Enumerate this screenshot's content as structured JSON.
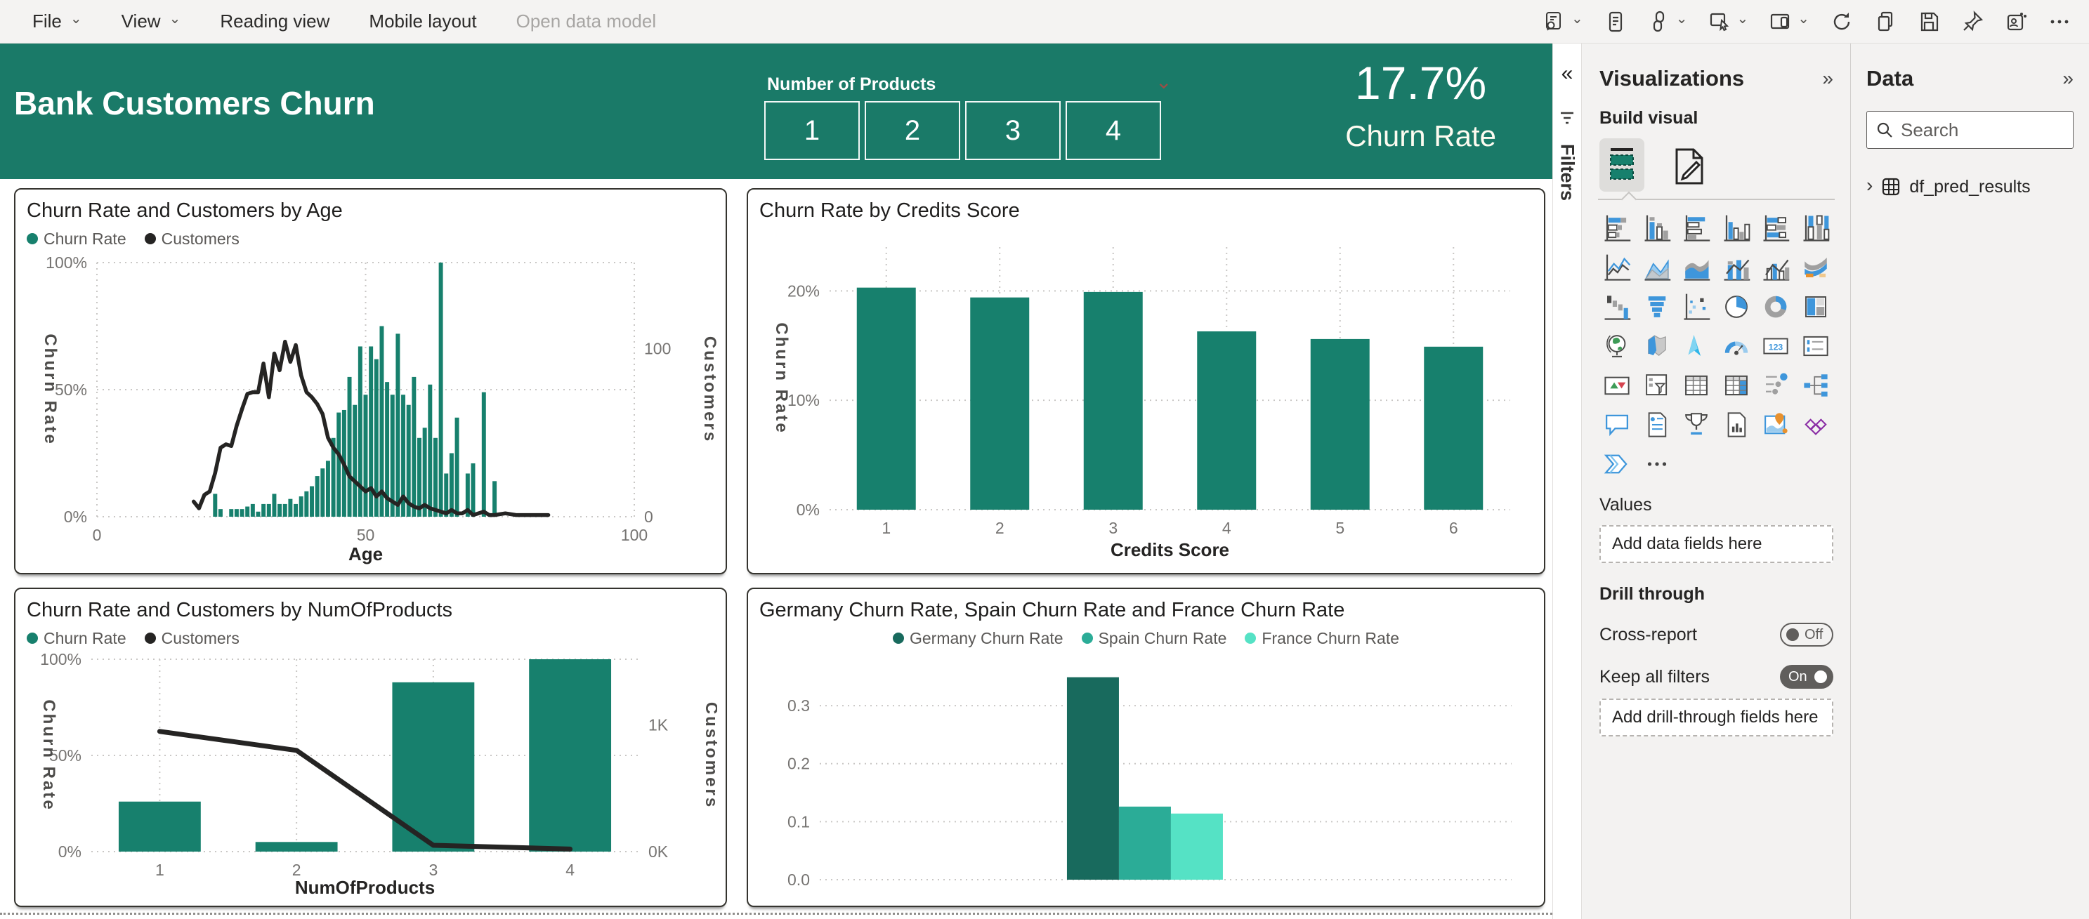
{
  "toolbar": {
    "menu": [
      {
        "label": "File",
        "chevron": true
      },
      {
        "label": "View",
        "chevron": true
      },
      {
        "label": "Reading view"
      },
      {
        "label": "Mobile layout"
      },
      {
        "label": "Open data model",
        "disabled": true
      }
    ],
    "icons": [
      {
        "name": "report-comments-icon",
        "chevron": true
      },
      {
        "name": "notes-icon"
      },
      {
        "name": "link-icon",
        "chevron": true
      },
      {
        "name": "multi-select-icon",
        "chevron": true
      },
      {
        "name": "mobile-preview-icon",
        "chevron": true
      },
      {
        "name": "refresh-icon"
      },
      {
        "name": "duplicate-icon"
      },
      {
        "name": "save-icon"
      },
      {
        "name": "pin-icon"
      },
      {
        "name": "teams-share-icon"
      },
      {
        "name": "more-options-icon"
      }
    ]
  },
  "banner": {
    "title": "Bank Customers Churn",
    "slicer_label": "Number of Products",
    "slicer_options": [
      "1",
      "2",
      "3",
      "4"
    ],
    "kpi_value": "17.7%",
    "kpi_label": "Churn Rate"
  },
  "filters_rail": {
    "label": "Filters",
    "collapse_icon": "«"
  },
  "viz_panel": {
    "title": "Visualizations",
    "collapse_icon": "»",
    "build_visual_label": "Build visual",
    "gallery": [
      "stacked-bar-chart",
      "stacked-column-chart",
      "clustered-bar-chart",
      "clustered-column-chart",
      "100-stacked-bar-chart",
      "100-stacked-column-chart",
      "line-chart",
      "area-chart",
      "stacked-area-chart",
      "line-and-stacked-column-chart",
      "line-and-clustered-column-chart",
      "ribbon-chart",
      "waterfall-chart",
      "funnel-chart",
      "scatter-chart",
      "pie-chart",
      "donut-chart",
      "treemap",
      "map",
      "filled-map",
      "azure-map",
      "gauge",
      "card",
      "multi-row-card",
      "kpi",
      "slicer",
      "table",
      "matrix",
      "key-influencers",
      "decomposition-tree",
      "qa",
      "smart-narrative",
      "metrics",
      "paginated-report",
      "arcgis-map",
      "power-apps",
      "power-automate",
      "more-options"
    ],
    "values_label": "Values",
    "values_well": "Add data fields here",
    "drill_through_label": "Drill through",
    "cross_report_label": "Cross-report",
    "cross_report_state": "Off",
    "keep_filters_label": "Keep all filters",
    "keep_filters_state": "On",
    "drill_well": "Add drill-through fields here"
  },
  "data_panel": {
    "title": "Data",
    "collapse_icon": "»",
    "search_placeholder": "Search",
    "tables": [
      {
        "name": "df_pred_results"
      }
    ]
  },
  "colors": {
    "teal": "#17806D",
    "banner_teal": "#1A7A68",
    "spain_teal": "#2BAC97",
    "france_mint": "#55E2C5",
    "line_black": "#252423"
  },
  "chart_data": [
    {
      "id": "age",
      "type": "combo-numeric",
      "title": "Churn Rate and Customers by Age",
      "legend": [
        {
          "label": "Churn Rate",
          "color": "#17806D"
        },
        {
          "label": "Customers",
          "color": "#252423"
        }
      ],
      "x_axis": {
        "label": "Age",
        "min": 0,
        "max": 100,
        "ticks": [
          0,
          50,
          100
        ]
      },
      "y_left": {
        "label": "Churn Rate",
        "max": 100,
        "ticks": [
          {
            "v": 0,
            "l": "0%"
          },
          {
            "v": 50,
            "l": "50%"
          },
          {
            "v": 100,
            "l": "100%"
          }
        ]
      },
      "y_right": {
        "label": "Customers",
        "max": 151,
        "ticks": [
          {
            "v": 0,
            "l": "0"
          },
          {
            "v": 100,
            "l": "100"
          }
        ]
      },
      "bars": {
        "x": [
          22,
          23,
          25,
          26,
          27,
          28,
          29,
          30,
          31,
          32,
          33,
          34,
          35,
          36,
          37,
          38,
          39,
          40,
          41,
          42,
          43,
          44,
          45,
          46,
          47,
          48,
          49,
          50,
          51,
          52,
          53,
          54,
          55,
          56,
          57,
          58,
          59,
          60,
          61,
          62,
          63,
          64,
          65,
          66,
          67,
          69,
          70,
          72,
          74
        ],
        "y": [
          9,
          3,
          3,
          3,
          3,
          4,
          5,
          2,
          5,
          5,
          9,
          5,
          5,
          7,
          5,
          8,
          10,
          12,
          16,
          19,
          22,
          31,
          41,
          42,
          55,
          44,
          67,
          48,
          67,
          62,
          75,
          53,
          48,
          72,
          48,
          44,
          55,
          31,
          35,
          52,
          31,
          100,
          17,
          25,
          39,
          17,
          21,
          49,
          14
        ]
      },
      "line": {
        "x": [
          18,
          19,
          20,
          21,
          22,
          23,
          24,
          25,
          26,
          27,
          28,
          29,
          30,
          31,
          32,
          33,
          34,
          35,
          36,
          37,
          38,
          39,
          40,
          41,
          42,
          43,
          44,
          45,
          46,
          47,
          48,
          49,
          50,
          51,
          52,
          53,
          54,
          55,
          56,
          57,
          58,
          59,
          60,
          61,
          62,
          63,
          64,
          65,
          66,
          67,
          68,
          69,
          70,
          71,
          72,
          73,
          74,
          76,
          78,
          80,
          82,
          84
        ],
        "y": [
          9,
          5,
          13,
          15,
          26,
          41,
          43,
          42,
          54,
          64,
          73,
          74,
          74,
          91,
          71,
          97,
          87,
          104,
          92,
          102,
          84,
          74,
          71,
          67,
          61,
          47,
          41,
          37,
          31,
          24,
          21,
          18,
          15,
          17,
          12,
          15,
          11,
          9,
          7,
          12,
          8,
          6,
          5,
          7,
          5,
          4,
          3,
          2,
          4,
          2,
          2,
          4,
          1,
          2,
          3,
          1,
          1,
          2,
          1,
          1,
          1,
          1
        ]
      }
    },
    {
      "id": "credit-score",
      "type": "bar",
      "title": "Churn Rate by Credits Score",
      "x_axis": {
        "label": "Credits Score",
        "categories": [
          "1",
          "2",
          "3",
          "4",
          "5",
          "6"
        ]
      },
      "y_left": {
        "label": "Churn Rate",
        "max": 24,
        "ticks": [
          {
            "v": 0,
            "l": "0%"
          },
          {
            "v": 10,
            "l": "10%"
          },
          {
            "v": 20,
            "l": "20%"
          }
        ]
      },
      "values": [
        20.3,
        19.4,
        19.9,
        16.3,
        15.6,
        14.9
      ],
      "bar_color": "#17806D"
    },
    {
      "id": "num-products",
      "type": "combo-category",
      "title": "Churn Rate and Customers by NumOfProducts",
      "legend": [
        {
          "label": "Churn Rate",
          "color": "#17806D"
        },
        {
          "label": "Customers",
          "color": "#252423"
        }
      ],
      "x_axis": {
        "label": "NumOfProducts",
        "categories": [
          "1",
          "2",
          "3",
          "4"
        ]
      },
      "y_left": {
        "label": "Churn Rate",
        "max": 100,
        "ticks": [
          {
            "v": 0,
            "l": "0%"
          },
          {
            "v": 50,
            "l": "50%"
          },
          {
            "v": 100,
            "l": "100%"
          }
        ]
      },
      "y_right": {
        "label": "Customers",
        "max": 1.52,
        "ticks": [
          {
            "v": 0,
            "l": "0K"
          },
          {
            "v": 1,
            "l": "1K"
          }
        ]
      },
      "values": [
        26,
        5,
        88,
        100
      ],
      "line": [
        0.95,
        0.8,
        0.05,
        0.02
      ],
      "bar_color": "#17806D"
    },
    {
      "id": "country",
      "type": "grouped-bar",
      "title": "Germany Churn Rate, Spain Churn Rate and France Churn Rate",
      "legend": [
        {
          "label": "Germany Churn Rate",
          "color": "#186A5D"
        },
        {
          "label": "Spain Churn Rate",
          "color": "#2BAC97"
        },
        {
          "label": "France Churn Rate",
          "color": "#55E2C5"
        }
      ],
      "y_left": {
        "max": 0.38,
        "ticks": [
          {
            "v": 0,
            "l": "0.0"
          },
          {
            "v": 0.1,
            "l": "0.1"
          },
          {
            "v": 0.2,
            "l": "0.2"
          },
          {
            "v": 0.3,
            "l": "0.3"
          }
        ]
      },
      "series": [
        {
          "name": "Germany Churn Rate",
          "value": 0.349,
          "color": "#186A5D"
        },
        {
          "name": "Spain Churn Rate",
          "value": 0.126,
          "color": "#2BAC97"
        },
        {
          "name": "France Churn Rate",
          "value": 0.114,
          "color": "#55E2C5"
        }
      ]
    }
  ]
}
